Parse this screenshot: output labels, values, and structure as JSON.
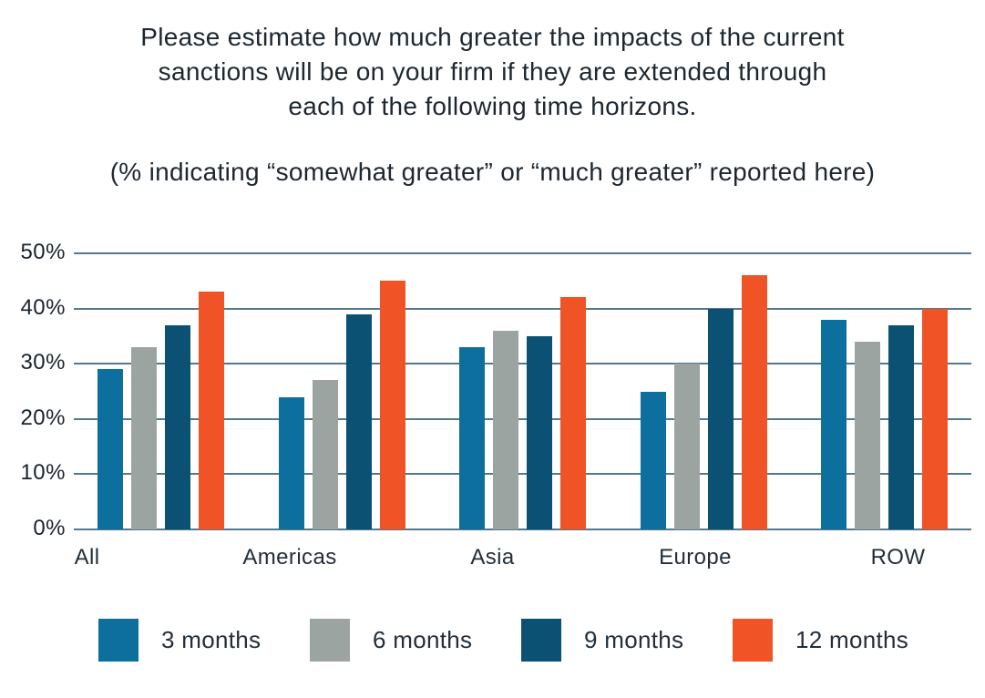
{
  "page": {
    "title_lines": [
      "Please estimate how much greater the impacts of the current",
      "sanctions will be on your firm if they are extended through",
      "each of the following time horizons."
    ],
    "subtitle": "(% indicating “somewhat greater” or “much greater” reported here)"
  },
  "colors": {
    "text": "#1c2730",
    "gridline": "#54788c",
    "background": "#ffffff"
  },
  "chart_data": {
    "type": "bar",
    "title": "Please estimate how much greater the impacts of the current sanctions will be on your firm if they are extended through each of the following time horizons.",
    "subtitle": "(% indicating “somewhat greater” or “much greater” reported here)",
    "categories": [
      "All",
      "Americas",
      "Asia",
      "Europe",
      "ROW"
    ],
    "series": [
      {
        "name": "3 months",
        "color": "#0C6F9D",
        "values": [
          29,
          24,
          33,
          25,
          38
        ]
      },
      {
        "name": "6 months",
        "color": "#9CA4A2",
        "values": [
          33,
          27,
          36,
          30,
          34
        ]
      },
      {
        "name": "9 months",
        "color": "#0A5174",
        "values": [
          37,
          39,
          35,
          40,
          37
        ]
      },
      {
        "name": "12 months",
        "color": "#F05326",
        "values": [
          43,
          45,
          42,
          46,
          40
        ]
      }
    ],
    "xlabel": "",
    "ylabel": "",
    "ylim": [
      0,
      50
    ],
    "ytick_step": 10,
    "ytick_labels": [
      "0%",
      "10%",
      "20%",
      "30%",
      "40%",
      "50%"
    ],
    "grid": true,
    "legend_position": "bottom"
  }
}
